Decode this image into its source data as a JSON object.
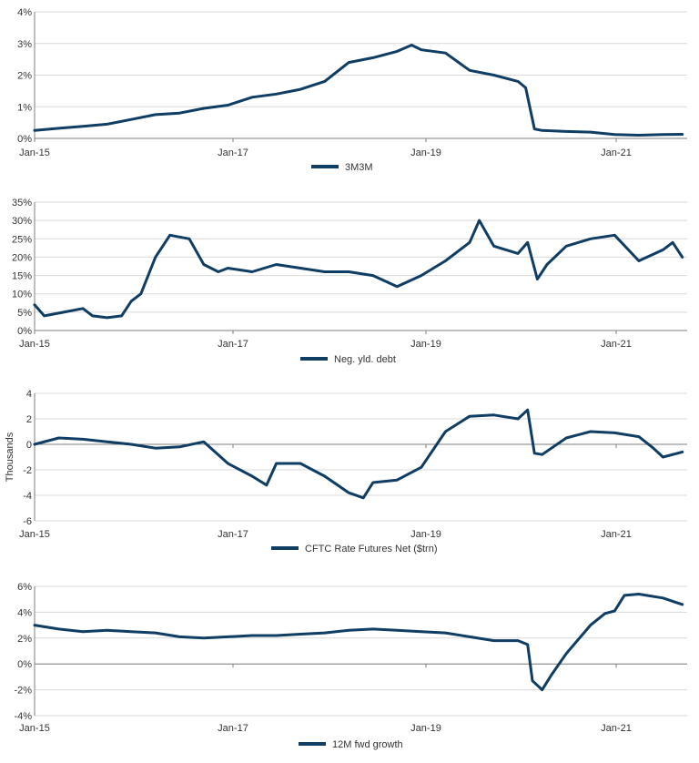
{
  "colors": {
    "line": "#0f3d63",
    "axis": "#7f7f7f",
    "grid": "#d9d9d9",
    "text": "#333333"
  },
  "chart_data": [
    {
      "type": "line",
      "x_ticks": [
        "Jan-15",
        "Jan-17",
        "Jan-19",
        "Jan-21"
      ],
      "y_tick_labels": [
        "0%",
        "1%",
        "2%",
        "3%",
        "4%"
      ],
      "ylim": [
        0,
        4
      ],
      "ylabel": "",
      "legend_position": "bottom-center",
      "series": [
        {
          "name": "3M3M",
          "x": [
            2015.0,
            2015.25,
            2015.5,
            2015.75,
            2016.0,
            2016.25,
            2016.5,
            2016.75,
            2017.0,
            2017.25,
            2017.5,
            2017.75,
            2018.0,
            2018.25,
            2018.5,
            2018.75,
            2018.9,
            2019.0,
            2019.25,
            2019.5,
            2019.75,
            2020.0,
            2020.08,
            2020.17,
            2020.25,
            2020.5,
            2020.75,
            2021.0,
            2021.25,
            2021.5,
            2021.7
          ],
          "y": [
            0.25,
            0.32,
            0.38,
            0.45,
            0.6,
            0.75,
            0.8,
            0.95,
            1.05,
            1.3,
            1.4,
            1.55,
            1.8,
            2.4,
            2.55,
            2.75,
            2.95,
            2.8,
            2.7,
            2.15,
            2.0,
            1.8,
            1.6,
            0.3,
            0.25,
            0.22,
            0.2,
            0.12,
            0.1,
            0.12,
            0.13
          ]
        }
      ]
    },
    {
      "type": "line",
      "x_ticks": [
        "Jan-15",
        "Jan-17",
        "Jan-19",
        "Jan-21"
      ],
      "y_tick_labels": [
        "0%",
        "5%",
        "10%",
        "15%",
        "20%",
        "25%",
        "30%",
        "35%"
      ],
      "ylim": [
        0,
        35
      ],
      "ylabel": "",
      "legend_position": "bottom-center",
      "series": [
        {
          "name": "Neg. yld. debt",
          "x": [
            2015.0,
            2015.1,
            2015.3,
            2015.5,
            2015.6,
            2015.75,
            2015.9,
            2016.0,
            2016.1,
            2016.25,
            2016.4,
            2016.6,
            2016.75,
            2016.9,
            2017.0,
            2017.25,
            2017.5,
            2017.75,
            2018.0,
            2018.25,
            2018.5,
            2018.75,
            2019.0,
            2019.25,
            2019.5,
            2019.6,
            2019.75,
            2020.0,
            2020.1,
            2020.2,
            2020.3,
            2020.5,
            2020.75,
            2021.0,
            2021.25,
            2021.5,
            2021.6,
            2021.7
          ],
          "y": [
            7,
            4,
            5,
            6,
            4,
            3.5,
            4,
            8,
            10,
            20,
            26,
            25,
            18,
            16,
            17,
            16,
            18,
            17,
            16,
            16,
            15,
            12,
            15,
            19,
            24,
            30,
            23,
            21,
            24,
            14,
            18,
            23,
            25,
            26,
            19,
            22,
            24,
            20
          ]
        }
      ]
    },
    {
      "type": "line",
      "x_ticks": [
        "Jan-15",
        "Jan-17",
        "Jan-19",
        "Jan-21"
      ],
      "y_tick_labels": [
        "-6",
        "-4",
        "-2",
        "0",
        "2",
        "4"
      ],
      "ylim": [
        -6,
        4
      ],
      "ylabel": "Thousands",
      "legend_position": "bottom-center",
      "series": [
        {
          "name": "CFTC Rate Futures Net ($trn)",
          "x": [
            2015.0,
            2015.25,
            2015.5,
            2015.75,
            2016.0,
            2016.25,
            2016.5,
            2016.75,
            2017.0,
            2017.25,
            2017.4,
            2017.5,
            2017.75,
            2018.0,
            2018.25,
            2018.4,
            2018.5,
            2018.75,
            2019.0,
            2019.25,
            2019.5,
            2019.75,
            2020.0,
            2020.1,
            2020.17,
            2020.25,
            2020.5,
            2020.75,
            2021.0,
            2021.25,
            2021.4,
            2021.5,
            2021.7
          ],
          "y": [
            0,
            0.5,
            0.4,
            0.2,
            0,
            -0.3,
            -0.2,
            0.2,
            -1.5,
            -2.5,
            -3.2,
            -1.5,
            -1.5,
            -2.5,
            -3.8,
            -4.2,
            -3.0,
            -2.8,
            -1.8,
            1.0,
            2.2,
            2.3,
            2.0,
            2.7,
            -0.7,
            -0.8,
            0.5,
            1.0,
            0.9,
            0.6,
            -0.3,
            -1.0,
            -0.6
          ]
        }
      ]
    },
    {
      "type": "line",
      "x_ticks": [
        "Jan-15",
        "Jan-17",
        "Jan-19",
        "Jan-21"
      ],
      "y_tick_labels": [
        "-4%",
        "-2%",
        "0%",
        "2%",
        "4%",
        "6%"
      ],
      "ylim": [
        -4,
        6
      ],
      "ylabel": "",
      "legend_position": "bottom-center",
      "series": [
        {
          "name": "12M fwd growth",
          "x": [
            2015.0,
            2015.25,
            2015.5,
            2015.75,
            2016.0,
            2016.25,
            2016.5,
            2016.75,
            2017.0,
            2017.25,
            2017.5,
            2017.75,
            2018.0,
            2018.25,
            2018.5,
            2018.75,
            2019.0,
            2019.25,
            2019.5,
            2019.75,
            2020.0,
            2020.1,
            2020.15,
            2020.25,
            2020.35,
            2020.5,
            2020.75,
            2020.9,
            2021.0,
            2021.1,
            2021.25,
            2021.5,
            2021.7
          ],
          "y": [
            3.0,
            2.7,
            2.5,
            2.6,
            2.5,
            2.4,
            2.1,
            2.0,
            2.1,
            2.2,
            2.2,
            2.3,
            2.4,
            2.6,
            2.7,
            2.6,
            2.5,
            2.4,
            2.1,
            1.8,
            1.8,
            1.5,
            -1.3,
            -2.0,
            -0.8,
            0.8,
            3.0,
            3.9,
            4.1,
            5.3,
            5.4,
            5.1,
            4.6
          ]
        }
      ]
    }
  ]
}
